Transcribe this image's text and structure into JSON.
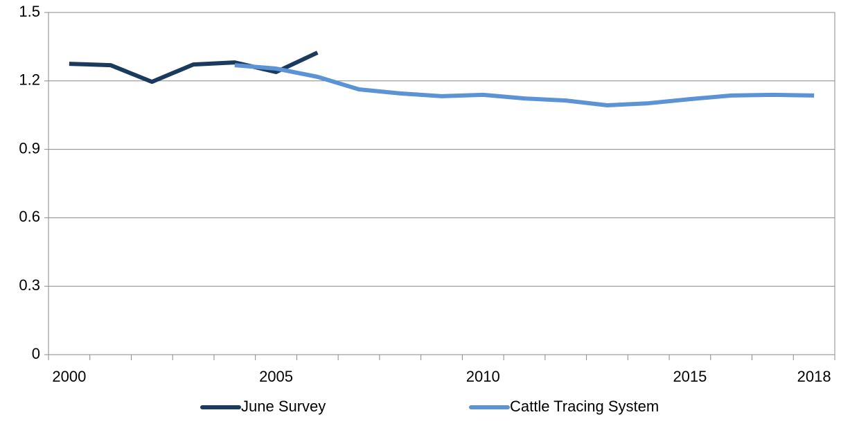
{
  "chart_data": {
    "type": "line",
    "categories": [
      2000,
      null,
      null,
      null,
      null,
      2005,
      null,
      null,
      null,
      null,
      2010,
      null,
      null,
      null,
      null,
      2015,
      null,
      null,
      2018
    ],
    "series": [
      {
        "name": "June Survey",
        "color": "#1a3a5e",
        "values": [
          1.275,
          1.269,
          1.196,
          1.272,
          1.281,
          1.239,
          1.324,
          null,
          null,
          null,
          null,
          null,
          null,
          null,
          null,
          null,
          null,
          null,
          null
        ]
      },
      {
        "name": "Cattle Tracing System",
        "color": "#5b93d5",
        "values": [
          null,
          null,
          null,
          null,
          1.269,
          1.254,
          1.218,
          1.163,
          1.145,
          1.133,
          1.139,
          1.123,
          1.114,
          1.093,
          1.102,
          1.12,
          1.136,
          1.139,
          1.136
        ]
      }
    ],
    "ylim": [
      0,
      1.5
    ],
    "yticks": [
      0,
      0.3,
      0.6,
      0.9,
      1.2,
      1.5
    ],
    "grid": true,
    "legend": "bottom"
  }
}
